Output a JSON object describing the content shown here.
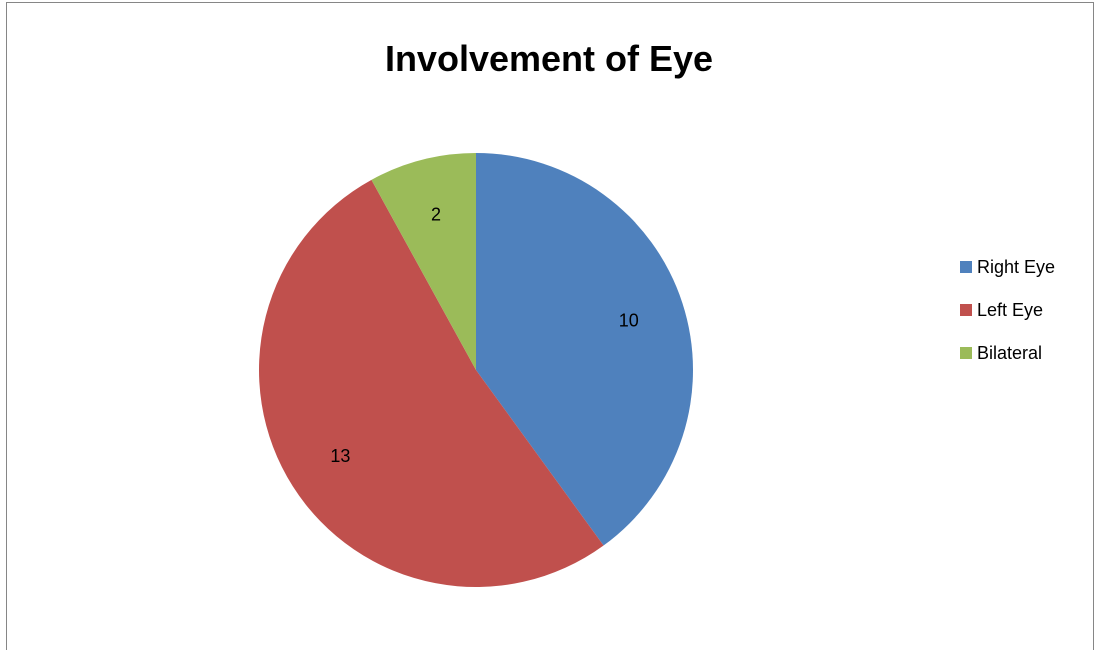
{
  "chart_data": {
    "type": "pie",
    "title": "Involvement of Eye",
    "categories": [
      "Right Eye",
      "Left Eye",
      "Bilateral"
    ],
    "values": [
      10,
      13,
      2
    ],
    "colors": [
      "#4f81bd",
      "#c0504d",
      "#9bbb59"
    ],
    "data_labels": [
      "10",
      "13",
      "2"
    ],
    "legend_position": "right"
  }
}
